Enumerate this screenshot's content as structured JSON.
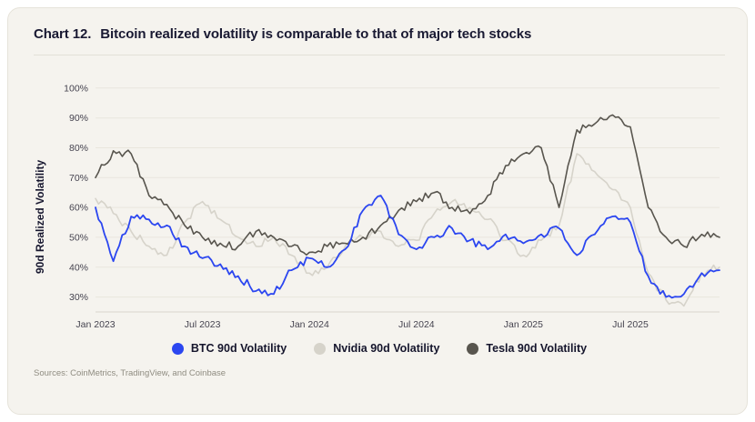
{
  "card": {
    "title_prefix": "Chart 12.",
    "title": "Bitcoin realized volatility is comparable to that of major tech stocks",
    "sources": "Sources: CoinMetrics, TradingView, and Coinbase"
  },
  "chart_data": {
    "type": "line",
    "title": "Bitcoin realized volatility is comparable to that of major tech stocks",
    "xlabel": "",
    "ylabel": "90d Realized Volatility",
    "x_start": "Jan 2023",
    "x_end": "Dec 2025",
    "x_interval": "monthly",
    "x_tick_labels": [
      "Jan 2023",
      "Jul 2023",
      "Jan 2024",
      "Jul 2024",
      "Jan 2025",
      "Jul 2025"
    ],
    "x_tick_positions": [
      0,
      6,
      12,
      18,
      24,
      30
    ],
    "y_ticks": [
      30,
      40,
      50,
      60,
      70,
      80,
      90,
      100
    ],
    "y_tick_suffix": "%",
    "ylim": [
      25,
      103
    ],
    "grid": "horizontal",
    "legend_position": "bottom",
    "series": [
      {
        "name": "BTC 90d Volatility",
        "color": "#2b46f0",
        "values": [
          60,
          42,
          57,
          56,
          54,
          47,
          43,
          41,
          37,
          32,
          31,
          39,
          43,
          40,
          46,
          59,
          64,
          51,
          46,
          50,
          53,
          49,
          46,
          51,
          48,
          51,
          53,
          44,
          51,
          57,
          55,
          37,
          30,
          31,
          38,
          39
        ]
      },
      {
        "name": "Nvidia 90d Volatility",
        "color": "#d6d3ca",
        "values": [
          63,
          58,
          52,
          47,
          44,
          55,
          62,
          56,
          50,
          47,
          50,
          44,
          38,
          40,
          47,
          50,
          52,
          47,
          49,
          58,
          62,
          60,
          56,
          49,
          44,
          49,
          54,
          78,
          72,
          66,
          60,
          38,
          29,
          27,
          38,
          40
        ]
      },
      {
        "name": "Tesla 90d Volatility",
        "color": "#58554e",
        "values": [
          70,
          79,
          78,
          64,
          61,
          54,
          50,
          48,
          47,
          52,
          50,
          47,
          45,
          47,
          48,
          50,
          54,
          59,
          62,
          65,
          60,
          58,
          64,
          74,
          78,
          80,
          60,
          86,
          88,
          91,
          87,
          60,
          50,
          47,
          51,
          50
        ]
      }
    ]
  }
}
